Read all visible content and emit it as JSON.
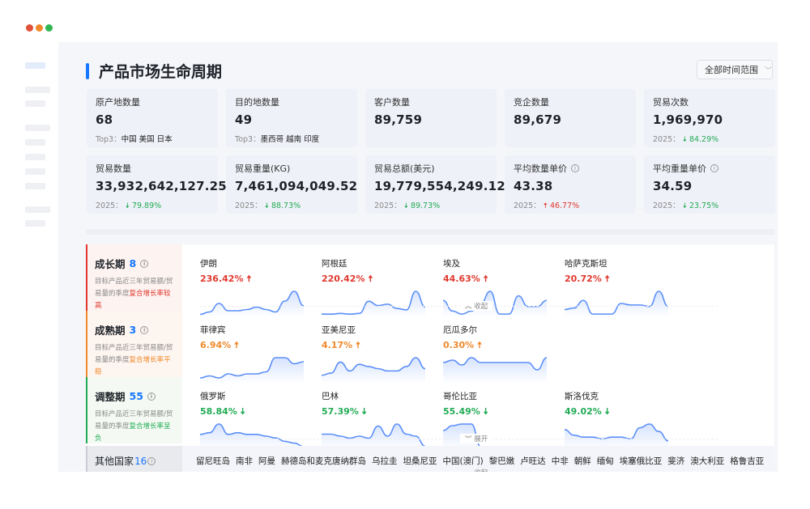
{
  "window": {
    "dots": [
      "#e0503a",
      "#f0892c",
      "#2fb552"
    ]
  },
  "header": {
    "title": "产品市场生命周期",
    "range_select": "全部时间范围"
  },
  "colors": {
    "accent": "#1677ff",
    "up": "#e0382e",
    "down": "#22ab55",
    "flat": "#f0892c",
    "spark": "#5b8ff9"
  },
  "cards": [
    {
      "label": "原产地数量",
      "value": "68",
      "sub_prefix": "Top3：",
      "sub_value": "中国 美国 日本"
    },
    {
      "label": "目的地数量",
      "value": "49",
      "sub_prefix": "Top3：",
      "sub_value": "墨西哥 越南 印度"
    },
    {
      "label": "客户数量",
      "value": "89,759"
    },
    {
      "label": "竞企数量",
      "value": "89,679"
    },
    {
      "label": "贸易次数",
      "value": "1,969,970",
      "sub_prefix": "2025：",
      "change": "84.29%",
      "dir": "down"
    },
    {
      "label": "贸易数量",
      "value": "33,932,642,127.25",
      "sub_prefix": "2025：",
      "change": "79.89%",
      "dir": "down"
    },
    {
      "label": "贸易重量(KG)",
      "value": "7,461,094,049.52",
      "sub_prefix": "2025：",
      "change": "88.73%",
      "dir": "down"
    },
    {
      "label": "贸易总额(美元)",
      "value": "19,779,554,249.12",
      "sub_prefix": "2025：",
      "change": "89.73%",
      "dir": "down"
    },
    {
      "label": "平均数量单价",
      "value": "43.38",
      "info": true,
      "sub_prefix": "2025：",
      "change": "46.77%",
      "dir": "up"
    },
    {
      "label": "平均重量单价",
      "value": "34.59",
      "info": true,
      "sub_prefix": "2025：",
      "change": "23.75%",
      "dir": "down"
    }
  ],
  "stages": [
    {
      "name": "成长期",
      "count": "8",
      "desc": "目标产品近三年贸易额/贸易量的季度",
      "desc_hl": "复合增长率较高",
      "color": "#e0382e",
      "bg": "#fdf3f1",
      "toggle": "收起",
      "items": [
        {
          "country": "伊朗",
          "pct": "236.42%",
          "dir": "up",
          "spark": [
            1,
            3,
            10,
            4,
            4,
            5,
            7,
            5,
            3,
            12,
            20,
            8
          ]
        },
        {
          "country": "阿根廷",
          "pct": "220.42%",
          "dir": "up",
          "spark": [
            1,
            1,
            1.5,
            1,
            1.5,
            10,
            7,
            8,
            5,
            4,
            17,
            6
          ]
        },
        {
          "country": "埃及",
          "pct": "44.63%",
          "dir": "up",
          "spark": [
            10,
            3,
            1,
            3,
            8,
            16,
            1,
            1,
            13,
            6,
            6,
            10
          ]
        },
        {
          "country": "哈萨克斯坦",
          "pct": "20.72%",
          "dir": "up",
          "spark": [
            4,
            5,
            10,
            1,
            1,
            1,
            8,
            7,
            7,
            6,
            16,
            6
          ]
        }
      ]
    },
    {
      "name": "成熟期",
      "count": "3",
      "desc": "目标产品近三年贸易额/贸易量的季度",
      "desc_hl": "复合增长率平稳",
      "color": "#f0892c",
      "bg": "#fdf5ef",
      "toggle": "",
      "items": [
        {
          "country": "菲律宾",
          "pct": "6.94%",
          "dir": "up",
          "spark": [
            2,
            3,
            2,
            4,
            3,
            4,
            4,
            5,
            12,
            12,
            9,
            10
          ]
        },
        {
          "country": "亚美尼亚",
          "pct": "4.17%",
          "dir": "up",
          "spark": [
            3,
            4,
            9,
            5,
            8,
            7,
            6,
            5,
            5,
            7,
            11,
            6
          ]
        },
        {
          "country": "厄瓜多尔",
          "pct": "0.30%",
          "dir": "up",
          "spark": [
            8,
            9,
            7,
            10,
            8,
            8,
            8,
            8,
            8,
            8,
            5,
            10
          ]
        }
      ]
    },
    {
      "name": "调整期",
      "count": "55",
      "desc": "目标产品近三年贸易额/贸易量的季度",
      "desc_hl": "复合增长率呈负",
      "color": "#22ab55",
      "bg": "#f4faf3",
      "toggle": "展开",
      "items": [
        {
          "country": "俄罗斯",
          "pct": "58.84%",
          "dir": "down",
          "spark": [
            8,
            9,
            14,
            8,
            9,
            8,
            8,
            7,
            6,
            4,
            3,
            1
          ]
        },
        {
          "country": "巴林",
          "pct": "57.39%",
          "dir": "down",
          "spark": [
            7,
            7,
            6,
            5,
            6,
            5,
            11,
            6,
            12,
            7,
            6,
            1
          ]
        },
        {
          "country": "哥伦比亚",
          "pct": "55.49%",
          "dir": "down",
          "spark": [
            11,
            14,
            15,
            15,
            1,
            1,
            1,
            1,
            1,
            1,
            1,
            1
          ]
        },
        {
          "country": "斯洛伐克",
          "pct": "49.02%",
          "dir": "down",
          "spark": [
            10,
            7,
            6,
            6,
            5,
            6,
            6,
            5,
            11,
            13,
            9,
            4
          ]
        }
      ]
    }
  ],
  "others": {
    "name": "其他国家",
    "count": "16",
    "toggle": "收起",
    "countries": [
      "留尼旺岛",
      "南非",
      "阿曼",
      "赫德岛和麦克唐纳群岛",
      "乌拉圭",
      "坦桑尼亚",
      "中国(澳门)",
      "黎巴嫩",
      "卢旺达",
      "中非",
      "朝鲜",
      "缅甸",
      "埃塞俄比亚",
      "斐济",
      "澳大利亚",
      "格鲁吉亚"
    ]
  }
}
